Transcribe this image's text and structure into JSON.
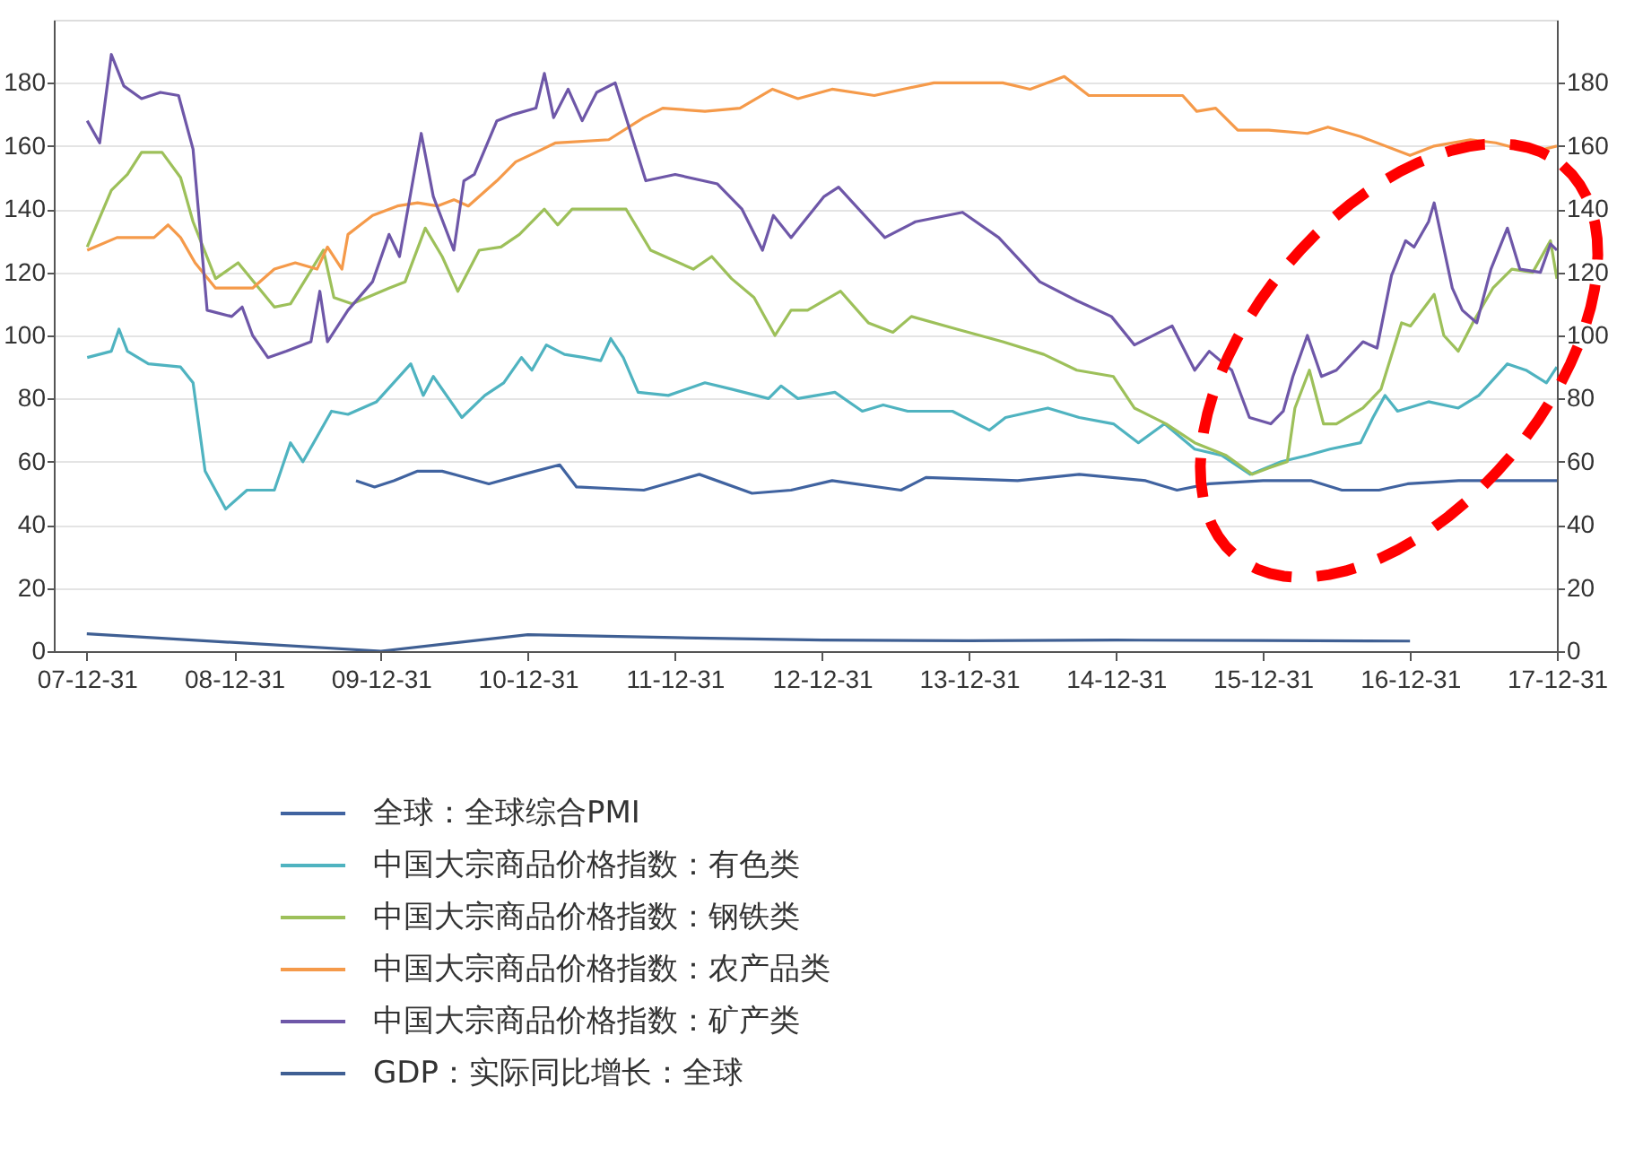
{
  "chart_data": {
    "type": "line",
    "xlim": [
      "2007-10-10",
      "2017-12-31"
    ],
    "xticks": [
      {
        "value": "2007-12-31",
        "label": "07-12-31"
      },
      {
        "value": "2008-12-31",
        "label": "08-12-31"
      },
      {
        "value": "2009-12-31",
        "label": "09-12-31"
      },
      {
        "value": "2010-12-31",
        "label": "10-12-31"
      },
      {
        "value": "2011-12-31",
        "label": "11-12-31"
      },
      {
        "value": "2012-12-31",
        "label": "12-12-31"
      },
      {
        "value": "2013-12-31",
        "label": "13-12-31"
      },
      {
        "value": "2014-12-31",
        "label": "14-12-31"
      },
      {
        "value": "2015-12-31",
        "label": "15-12-31"
      },
      {
        "value": "2016-12-31",
        "label": "16-12-31"
      },
      {
        "value": "2017-12-31",
        "label": "17-12-31"
      }
    ],
    "ylim": [
      0,
      200
    ],
    "yticks": [
      0,
      20,
      40,
      60,
      80,
      100,
      120,
      140,
      160,
      180
    ],
    "y2lim": [
      0,
      200
    ],
    "y2ticks": [
      0,
      20,
      40,
      60,
      80,
      100,
      120,
      140,
      160,
      180
    ],
    "grid": "y",
    "legend": "bottom",
    "line_style": "solid",
    "marker": "none",
    "series": [
      {
        "name": "全球：全球综合PMI",
        "color": "#4063a0",
        "x": [
          "2009-10-30",
          "2009-12-15",
          "2010-02-01",
          "2010-04-01",
          "2010-06-01",
          "2010-09-25",
          "2010-12-20",
          "2011-03-20",
          "2011-05-01",
          "2011-10-15",
          "2012-03-01",
          "2012-07-10",
          "2012-10-15",
          "2013-01-25",
          "2013-07-15",
          "2013-09-15",
          "2014-05-01",
          "2014-10-01",
          "2015-03-15",
          "2015-06-01",
          "2015-08-20",
          "2016-01-01",
          "2016-04-30",
          "2016-07-15",
          "2016-10-15",
          "2016-12-25",
          "2017-05-01",
          "2017-09-15",
          "2017-12-31"
        ],
        "values": [
          54,
          52,
          54,
          57,
          57,
          53,
          56,
          59,
          52,
          51,
          56,
          50,
          51,
          54,
          51,
          55,
          54,
          56,
          54,
          51,
          53,
          54,
          54,
          51,
          51,
          53,
          54,
          54,
          54
        ]
      },
      {
        "name": "中国大宗商品价格指数：有色类",
        "color": "#4fb3c0",
        "x": [
          "2008-01-01",
          "2008-03-01",
          "2008-03-20",
          "2008-04-10",
          "2008-06-01",
          "2008-08-20",
          "2008-09-20",
          "2008-10-20",
          "2008-12-10",
          "2009-02-01",
          "2009-04-10",
          "2009-05-20",
          "2009-06-20",
          "2009-08-30",
          "2009-10-10",
          "2009-12-20",
          "2010-03-15",
          "2010-04-15",
          "2010-05-10",
          "2010-07-20",
          "2010-09-15",
          "2010-11-01",
          "2010-12-15",
          "2011-01-10",
          "2011-02-15",
          "2011-04-01",
          "2011-05-20",
          "2011-06-30",
          "2011-07-25",
          "2011-08-25",
          "2011-10-01",
          "2011-12-15",
          "2012-03-15",
          "2012-05-20",
          "2012-08-20",
          "2012-09-20",
          "2012-11-01",
          "2013-02-01",
          "2013-04-10",
          "2013-06-01",
          "2013-08-01",
          "2013-11-20",
          "2014-02-20",
          "2014-04-01",
          "2014-07-15",
          "2014-10-01",
          "2014-12-25",
          "2015-02-25",
          "2015-05-01",
          "2015-07-15",
          "2015-09-20",
          "2015-11-30",
          "2016-02-15",
          "2016-04-20",
          "2016-06-15",
          "2016-08-30",
          "2016-09-30",
          "2016-10-30",
          "2016-11-30",
          "2017-02-15",
          "2017-04-30",
          "2017-06-20",
          "2017-08-30",
          "2017-10-15",
          "2017-12-05",
          "2017-12-31"
        ],
        "values": [
          93,
          95,
          102,
          95,
          91,
          90,
          85,
          57,
          45,
          51,
          51,
          66,
          60,
          76,
          75,
          79,
          91,
          81,
          87,
          74,
          81,
          85,
          93,
          89,
          97,
          94,
          93,
          92,
          99,
          93,
          82,
          81,
          85,
          83,
          80,
          84,
          80,
          82,
          76,
          78,
          76,
          76,
          70,
          74,
          77,
          74,
          72,
          66,
          72,
          64,
          62,
          56,
          60,
          62,
          64,
          66,
          74,
          81,
          76,
          79,
          77,
          81,
          91,
          89,
          85,
          90
        ]
      },
      {
        "name": "中国大宗商品价格指数：钢铁类",
        "color": "#9dc05a",
        "x": [
          "2008-01-01",
          "2008-03-01",
          "2008-04-10",
          "2008-05-15",
          "2008-07-05",
          "2008-08-20",
          "2008-09-20",
          "2008-11-15",
          "2009-01-10",
          "2009-04-10",
          "2009-05-20",
          "2009-08-10",
          "2009-09-05",
          "2009-10-20",
          "2010-01-20",
          "2010-03-01",
          "2010-04-20",
          "2010-06-01",
          "2010-07-10",
          "2010-09-01",
          "2010-10-25",
          "2010-12-10",
          "2011-02-10",
          "2011-03-15",
          "2011-04-20",
          "2011-09-01",
          "2011-11-01",
          "2012-02-15",
          "2012-04-01",
          "2012-05-20",
          "2012-07-15",
          "2012-09-05",
          "2012-10-15",
          "2012-11-25",
          "2013-02-15",
          "2013-04-25",
          "2013-06-25",
          "2013-08-10",
          "2013-12-01",
          "2014-03-25",
          "2014-07-05",
          "2014-09-25",
          "2014-12-25",
          "2015-02-15",
          "2015-05-05",
          "2015-07-15",
          "2015-10-01",
          "2015-12-05",
          "2016-01-15",
          "2016-03-01",
          "2016-03-20",
          "2016-04-25",
          "2016-05-30",
          "2016-07-01",
          "2016-09-05",
          "2016-10-20",
          "2016-12-10",
          "2017-01-01",
          "2017-03-01",
          "2017-03-25",
          "2017-04-30",
          "2017-06-05",
          "2017-07-25",
          "2017-09-10",
          "2017-11-01",
          "2017-12-15",
          "2017-12-31"
        ],
        "values": [
          128,
          146,
          151,
          158,
          158,
          150,
          136,
          118,
          123,
          109,
          110,
          127,
          112,
          110,
          115,
          117,
          134,
          125,
          114,
          127,
          128,
          132,
          140,
          135,
          140,
          140,
          127,
          121,
          125,
          118,
          112,
          100,
          108,
          108,
          114,
          104,
          101,
          106,
          102,
          98,
          94,
          89,
          87,
          77,
          72,
          66,
          62,
          56,
          58,
          60,
          77,
          89,
          72,
          72,
          77,
          83,
          104,
          103,
          113,
          100,
          95,
          104,
          115,
          121,
          120,
          130,
          118
        ]
      },
      {
        "name": "中国大宗商品价格指数：农产品类",
        "color": "#f59a4a",
        "x": [
          "2008-01-01",
          "2008-03-15",
          "2008-06-15",
          "2008-07-20",
          "2008-08-20",
          "2008-09-25",
          "2008-11-15",
          "2009-02-15",
          "2009-04-10",
          "2009-06-01",
          "2009-07-25",
          "2009-08-20",
          "2009-09-25",
          "2009-10-10",
          "2009-12-10",
          "2010-02-10",
          "2010-04-01",
          "2010-05-20",
          "2010-06-30",
          "2010-08-05",
          "2010-10-15",
          "2010-12-01",
          "2011-01-20",
          "2011-03-10",
          "2011-07-20",
          "2011-10-15",
          "2011-12-01",
          "2012-03-15",
          "2012-06-10",
          "2012-08-30",
          "2012-11-01",
          "2013-01-25",
          "2013-05-10",
          "2013-07-20",
          "2013-10-05",
          "2014-03-25",
          "2014-06-01",
          "2014-08-25",
          "2014-10-25",
          "2015-06-15",
          "2015-07-20",
          "2015-09-05",
          "2015-10-30",
          "2016-01-15",
          "2016-04-20",
          "2016-06-10",
          "2016-08-30",
          "2016-12-31",
          "2017-03-01",
          "2017-05-30",
          "2017-08-01",
          "2017-10-30",
          "2017-12-31"
        ],
        "values": [
          127,
          131,
          131,
          135,
          131,
          123,
          115,
          115,
          121,
          123,
          121,
          128,
          121,
          132,
          138,
          141,
          142,
          141,
          143,
          141,
          149,
          155,
          158,
          161,
          162,
          169,
          172,
          171,
          172,
          178,
          175,
          178,
          176,
          178,
          180,
          180,
          178,
          182,
          176,
          176,
          171,
          172,
          165,
          165,
          164,
          166,
          163,
          157,
          160,
          162,
          161,
          158,
          160
        ]
      },
      {
        "name": "中国大宗商品价格指数：矿产类",
        "color": "#6e57a8",
        "x": [
          "2008-01-01",
          "2008-02-01",
          "2008-03-01",
          "2008-04-01",
          "2008-05-15",
          "2008-07-01",
          "2008-08-15",
          "2008-09-20",
          "2008-10-25",
          "2008-12-25",
          "2009-01-20",
          "2009-02-15",
          "2009-03-25",
          "2009-05-10",
          "2009-07-10",
          "2009-08-01",
          "2009-08-20",
          "2009-10-10",
          "2009-12-10",
          "2010-01-20",
          "2010-02-15",
          "2010-04-10",
          "2010-05-10",
          "2010-06-30",
          "2010-07-25",
          "2010-08-20",
          "2010-10-15",
          "2010-11-25",
          "2011-01-20",
          "2011-02-10",
          "2011-03-05",
          "2011-04-10",
          "2011-05-15",
          "2011-06-20",
          "2011-08-05",
          "2011-10-20",
          "2012-01-01",
          "2012-04-15",
          "2012-06-15",
          "2012-08-05",
          "2012-09-01",
          "2012-10-15",
          "2013-01-05",
          "2013-02-10",
          "2013-06-05",
          "2013-08-20",
          "2013-12-15",
          "2014-03-15",
          "2014-06-25",
          "2014-09-25",
          "2014-12-20",
          "2015-02-15",
          "2015-05-20",
          "2015-07-15",
          "2015-08-20",
          "2015-10-15",
          "2015-11-28",
          "2016-01-20",
          "2016-02-20",
          "2016-03-15",
          "2016-04-20",
          "2016-05-25",
          "2016-07-01",
          "2016-09-05",
          "2016-10-10",
          "2016-11-15",
          "2016-12-20",
          "2017-01-10",
          "2017-02-15",
          "2017-03-01",
          "2017-04-15",
          "2017-05-10",
          "2017-06-15",
          "2017-07-20",
          "2017-08-30",
          "2017-09-30",
          "2017-11-20",
          "2017-12-15",
          "2017-12-31"
        ],
        "values": [
          168,
          161,
          189,
          179,
          175,
          177,
          176,
          159,
          108,
          106,
          109,
          100,
          93,
          95,
          98,
          114,
          98,
          108,
          117,
          132,
          125,
          164,
          144,
          127,
          149,
          151,
          168,
          170,
          172,
          183,
          169,
          178,
          168,
          177,
          180,
          149,
          151,
          148,
          140,
          127,
          138,
          131,
          144,
          147,
          131,
          136,
          139,
          131,
          117,
          111,
          106,
          97,
          103,
          89,
          95,
          89,
          74,
          72,
          76,
          87,
          100,
          87,
          89,
          98,
          96,
          119,
          130,
          128,
          136,
          142,
          115,
          108,
          104,
          121,
          134,
          121,
          120,
          129,
          127
        ]
      },
      {
        "name": "GDP：实际同比增长：全球",
        "color": "#3f5f93",
        "x": [
          "2007-12-31",
          "2009-12-31",
          "2010-12-31",
          "2011-12-31",
          "2012-12-31",
          "2013-12-31",
          "2014-12-31",
          "2015-12-31",
          "2016-12-31"
        ],
        "values": [
          5.5,
          0,
          5.2,
          4.3,
          3.5,
          3.3,
          3.5,
          3.4,
          3.2
        ]
      }
    ]
  }
}
